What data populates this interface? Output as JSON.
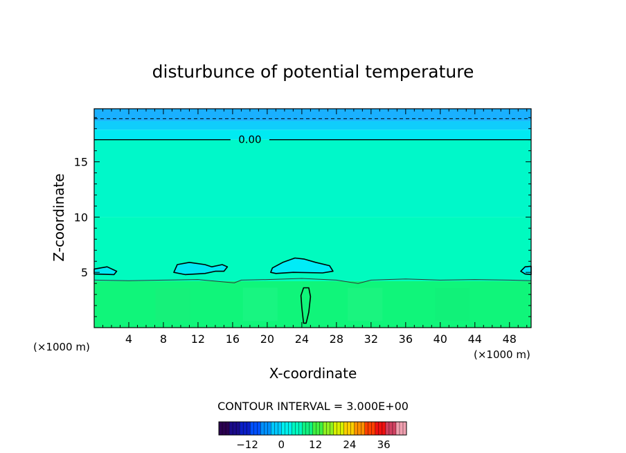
{
  "chart_data": {
    "type": "heatmap",
    "title": "disturbunce of potential temperature",
    "xlabel": "X-coordinate",
    "ylabel": "Z-coordinate",
    "x_unit_left": "(×1000 m)",
    "x_unit_right": "(×1000 m)",
    "xlim": [
      0,
      50.5
    ],
    "ylim": [
      0,
      19.8
    ],
    "xticks": [
      4,
      8,
      12,
      16,
      20,
      24,
      28,
      32,
      36,
      40,
      44,
      48
    ],
    "yticks": [
      5,
      10,
      15
    ],
    "contour_interval_text": "CONTOUR INTERVAL = 3.000E+00",
    "contour_label": "0.00",
    "zero_contour_level": 17.0,
    "layers": [
      {
        "z_from": 18.7,
        "z_to": 19.8,
        "color": "#1ab0ff"
      },
      {
        "z_from": 17.9,
        "z_to": 18.7,
        "color": "#10cdfb"
      },
      {
        "z_from": 17.0,
        "z_to": 17.9,
        "color": "#00eaf2"
      },
      {
        "z_from": 10.0,
        "z_to": 17.0,
        "color": "#00f8c9"
      },
      {
        "z_from": 4.2,
        "z_to": 10.0,
        "color": "#00fbbf"
      },
      {
        "z_from": 0,
        "z_to": 4.2,
        "color": "#10f57a"
      }
    ],
    "colorbar": {
      "ticks": [
        -12,
        0,
        12,
        24,
        36
      ],
      "range": [
        -22,
        44
      ],
      "colors": [
        "#2a0050",
        "#1a0a8a",
        "#0a1ec8",
        "#0050ff",
        "#0090ff",
        "#00c8ff",
        "#00f0ee",
        "#00f8c0",
        "#10f080",
        "#40f040",
        "#90f020",
        "#d8f000",
        "#ffd000",
        "#ff9000",
        "#ff4000",
        "#f01010",
        "#d04060",
        "#f0a0b0"
      ]
    },
    "grid": false,
    "legend": "none"
  }
}
